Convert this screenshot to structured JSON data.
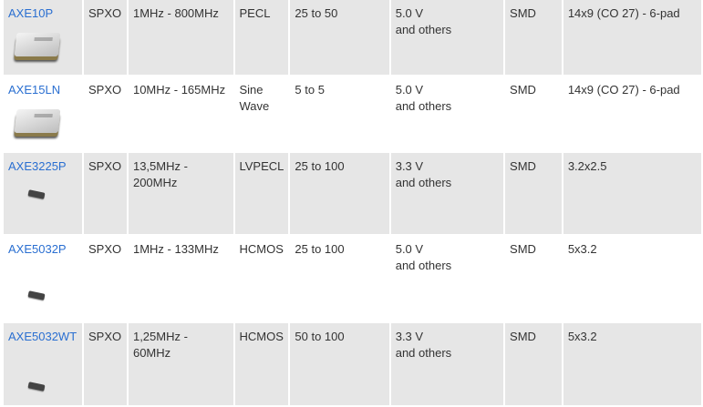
{
  "rows": [
    {
      "model": "AXE10P",
      "type": "SPXO",
      "freq": "1MHz - 800MHz",
      "output": "PECL",
      "stability": "25 to 50",
      "voltage": "5.0 V",
      "voltage_note": "and others",
      "mount": "SMD",
      "package": "14x9 (CO 27) - 6-pad",
      "image": "oscillator-14x9"
    },
    {
      "model": "AXE15LN",
      "type": "SPXO",
      "freq": "10MHz - 165MHz",
      "output": "Sine Wave",
      "stability": "5 to 5",
      "voltage": "5.0 V",
      "voltage_note": "and others",
      "mount": "SMD",
      "package": "14x9 (CO 27) - 6-pad",
      "image": "oscillator-14x9"
    },
    {
      "model": "AXE3225P",
      "type": "SPXO",
      "freq": "13,5MHz - 200MHz",
      "output": "LVPECL",
      "stability": "25 to 100",
      "voltage": "3.3 V",
      "voltage_note": "and others",
      "mount": "SMD",
      "package": "3.2x2.5",
      "image": "chip-small"
    },
    {
      "model": "AXE5032P",
      "type": "SPXO",
      "freq": "1MHz - 133MHz",
      "output": "HCMOS",
      "stability": "25 to 100",
      "voltage": "5.0 V",
      "voltage_note": "and others",
      "mount": "SMD",
      "package": "5x3.2",
      "image": "chip-small"
    },
    {
      "model": "AXE5032WT",
      "type": "SPXO",
      "freq": "1,25MHz - 60MHz",
      "output": "HCMOS",
      "stability": "50 to 100",
      "voltage": "3.3 V",
      "voltage_note": "and others",
      "mount": "SMD",
      "package": "5x3.2",
      "image": "chip-small"
    }
  ]
}
